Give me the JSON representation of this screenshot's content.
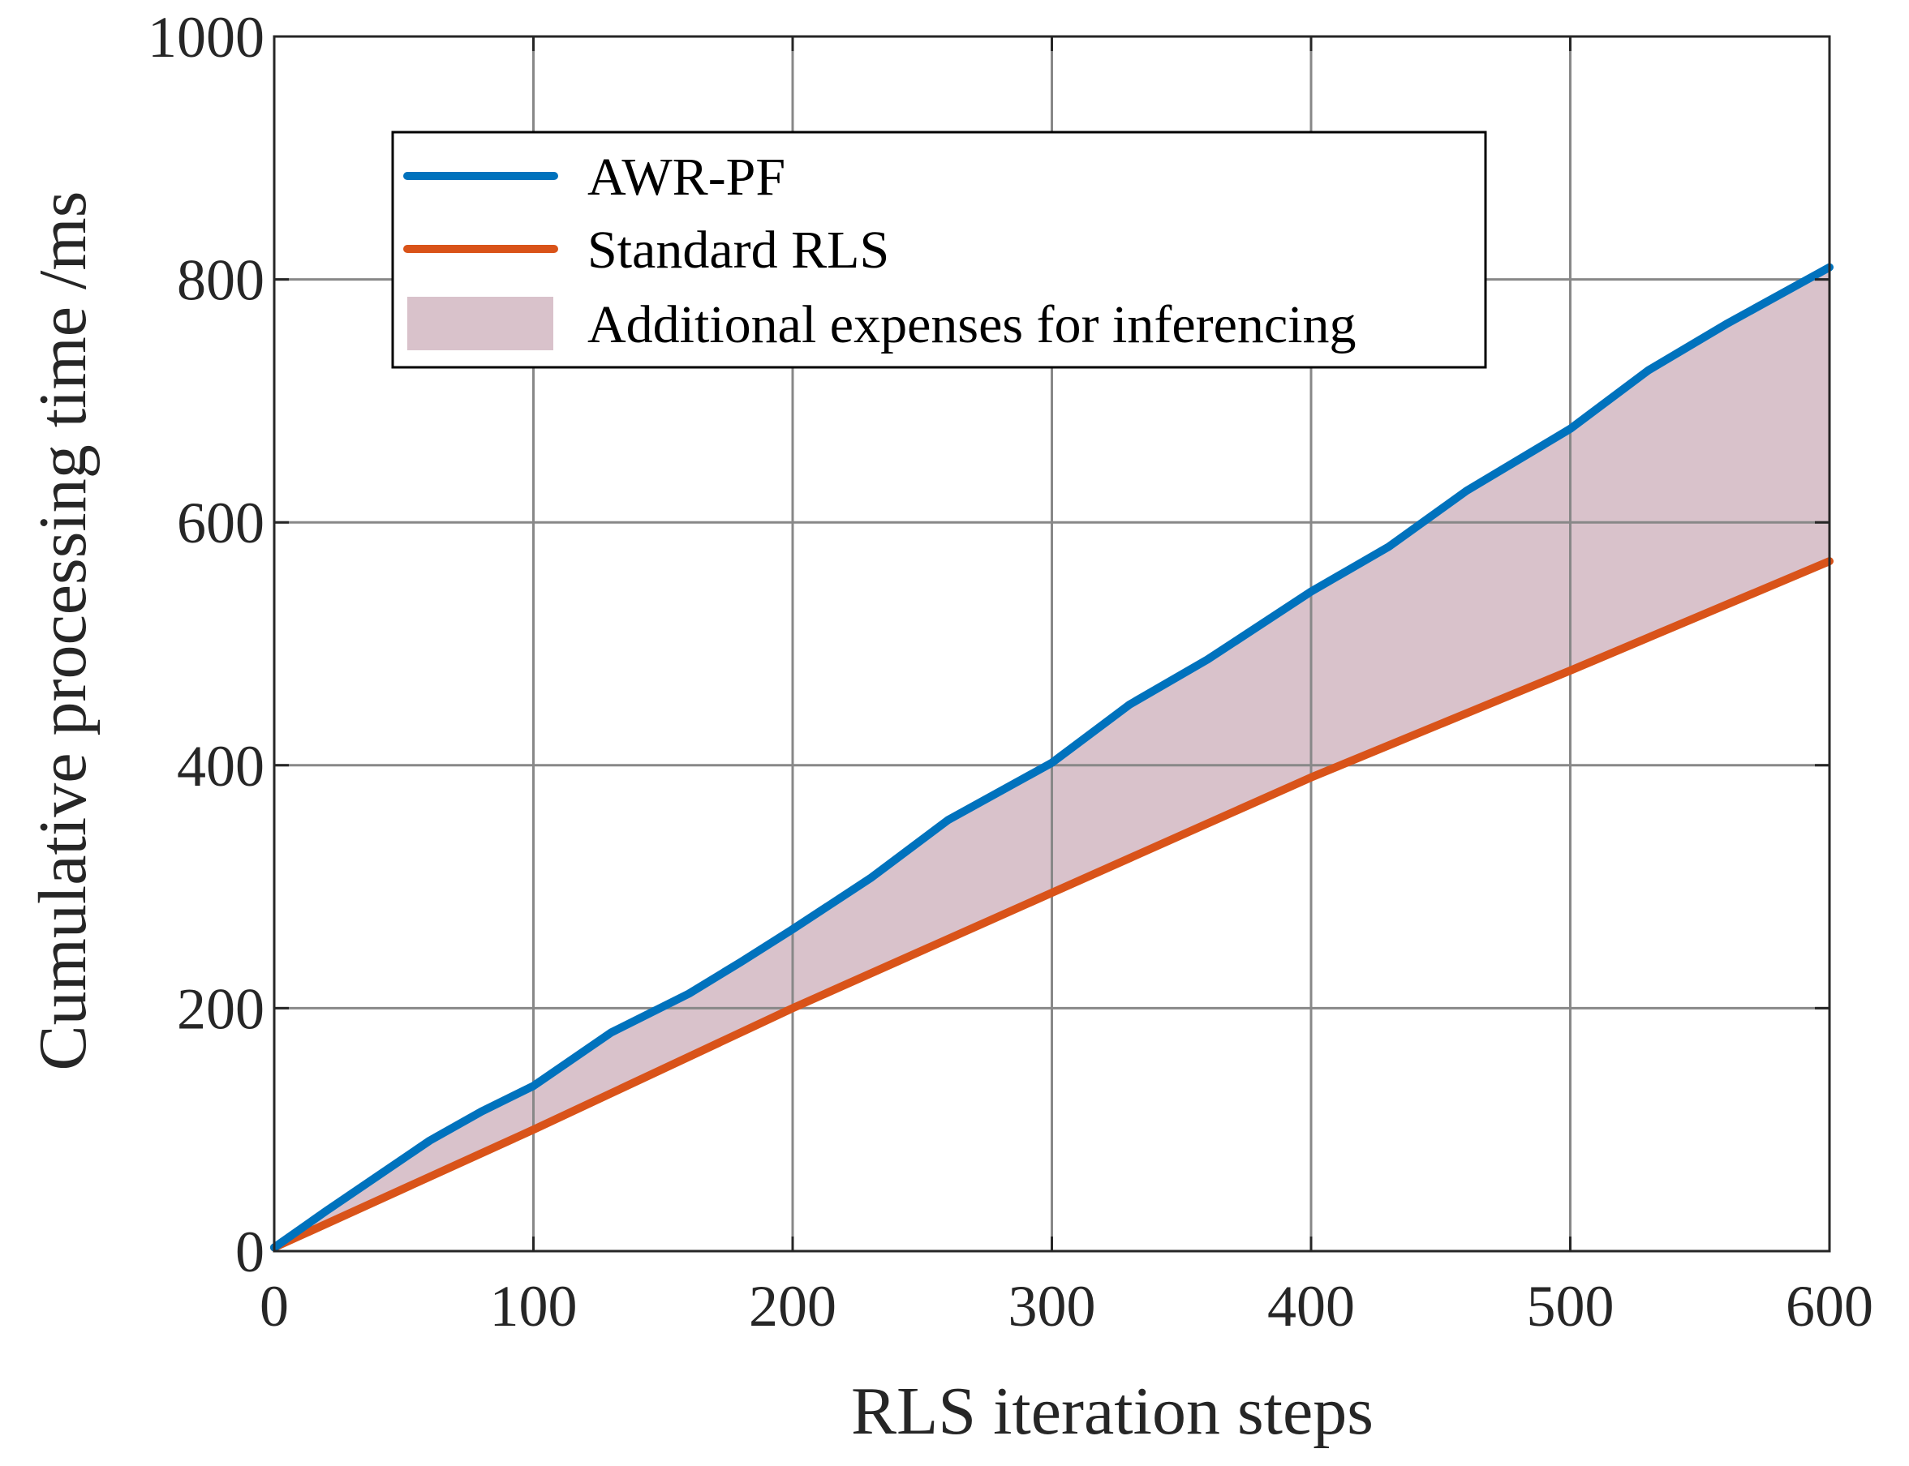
{
  "chart_data": {
    "type": "line",
    "title": "",
    "xlabel": "RLS iteration steps",
    "ylabel": "Cumulative processing time /ms",
    "xlim": [
      0,
      600
    ],
    "ylim": [
      0,
      1000
    ],
    "xticks": [
      "0",
      "100",
      "200",
      "300",
      "400",
      "500",
      "600"
    ],
    "yticks": [
      "0",
      "200",
      "400",
      "600",
      "800",
      "1000"
    ],
    "grid": true,
    "legend_position": "top-center",
    "series": [
      {
        "name": "AWR-PF",
        "color": "#0072BD",
        "x": [
          0,
          20,
          40,
          60,
          80,
          100,
          130,
          160,
          180,
          200,
          230,
          260,
          300,
          330,
          360,
          400,
          430,
          460,
          500,
          530,
          560,
          600
        ],
        "values": [
          3,
          33,
          62,
          91,
          115,
          136,
          180,
          212,
          238,
          265,
          307,
          355,
          402,
          450,
          487,
          543,
          580,
          626,
          677,
          725,
          763,
          810
        ]
      },
      {
        "name": "Standard RLS",
        "color": "#D95319",
        "x": [
          0,
          100,
          200,
          300,
          400,
          500,
          600
        ],
        "values": [
          3,
          100,
          200,
          295,
          390,
          478,
          568
        ]
      }
    ],
    "fill": {
      "name": "Additional expenses for inferencing",
      "color": "#D9C2CB",
      "between": [
        "AWR-PF",
        "Standard RLS"
      ]
    }
  }
}
